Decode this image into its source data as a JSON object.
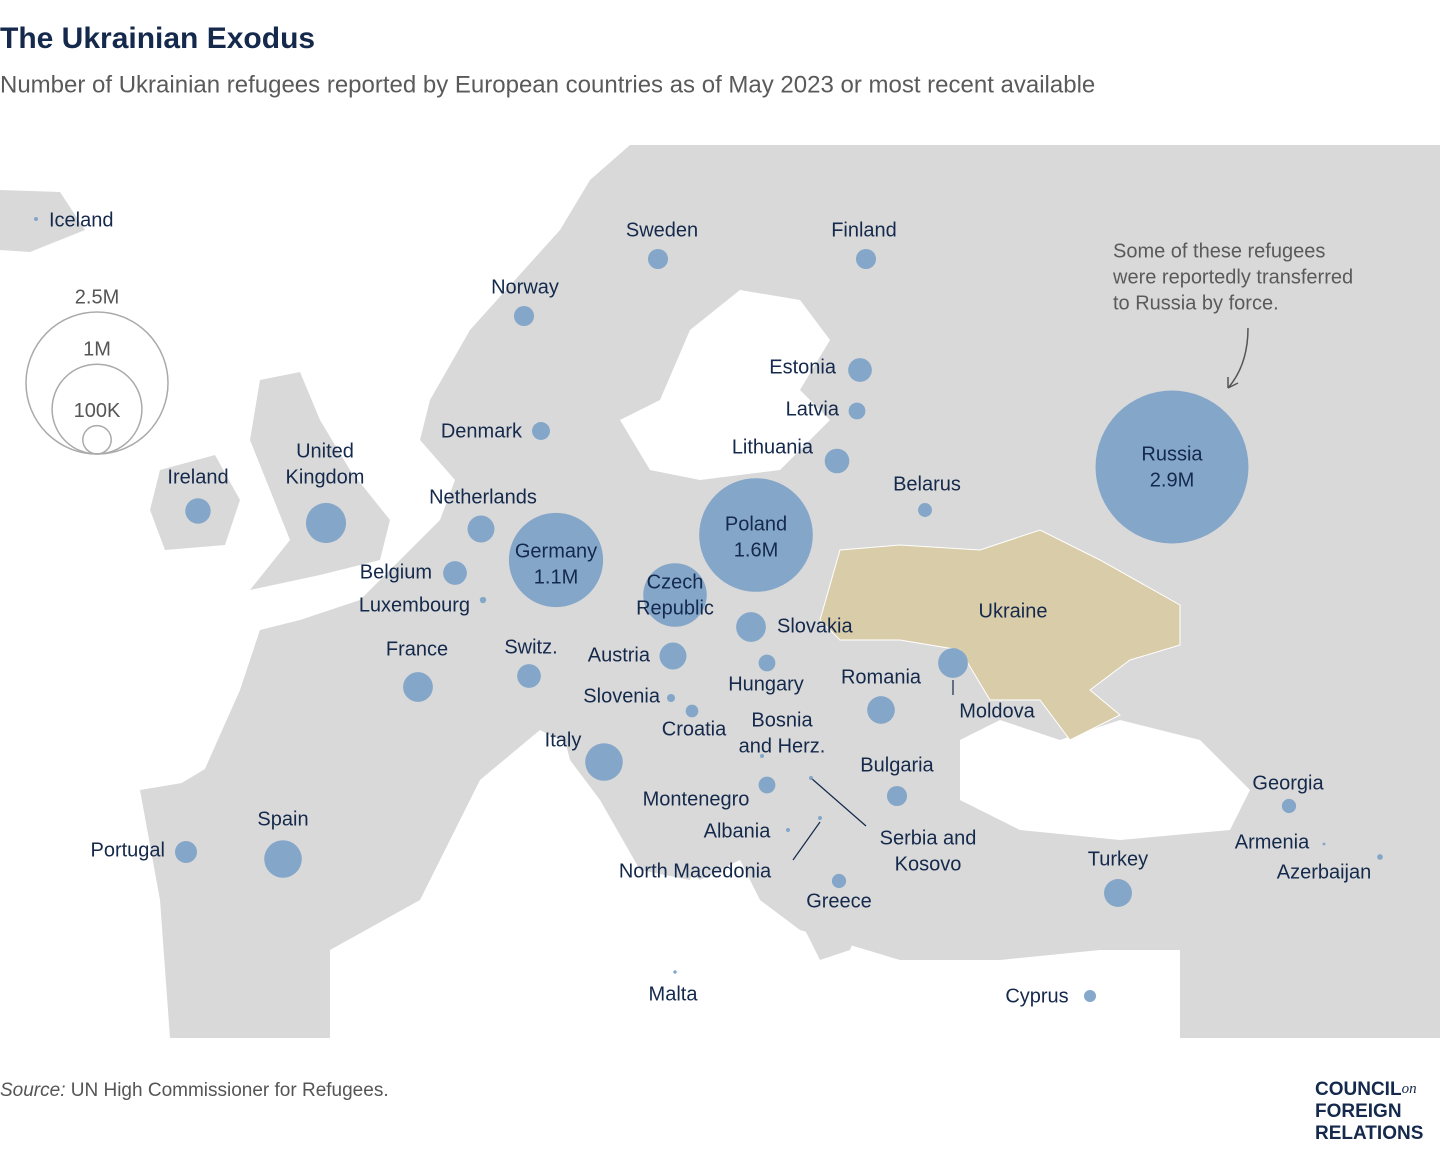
{
  "title": "The Ukrainian Exodus",
  "subtitle": "Number of Ukrainian refugees reported by European countries as of May 2023 or most recent available",
  "legend": {
    "sizes": [
      {
        "value": 2500000,
        "label": "2.5M"
      },
      {
        "value": 1000000,
        "label": "1M"
      },
      {
        "value": 100000,
        "label": "100K"
      }
    ]
  },
  "annotation": [
    "Some of these refugees",
    "were reportedly transferred",
    "to Russia by force."
  ],
  "ukraine_label": "Ukraine",
  "countries": [
    {
      "name": "Iceland",
      "value": 2000
    },
    {
      "name": "Sweden",
      "value": 50000
    },
    {
      "name": "Finland",
      "value": 50000
    },
    {
      "name": "Norway",
      "value": 50000
    },
    {
      "name": "Estonia",
      "value": 70000
    },
    {
      "name": "Latvia",
      "value": 35000
    },
    {
      "name": "Denmark",
      "value": 40000
    },
    {
      "name": "Lithuania",
      "value": 75000
    },
    {
      "name": "Belarus",
      "value": 24000
    },
    {
      "name": "Ireland",
      "value": 80000
    },
    {
      "name": [
        "United",
        "Kingdom"
      ],
      "value": 200000
    },
    {
      "name": "Netherlands",
      "value": 90000
    },
    {
      "name": "Germany",
      "value": 1100000,
      "value_label": "1.1M"
    },
    {
      "name": "Poland",
      "value": 1600000,
      "value_label": "1.6M"
    },
    {
      "name": "Russia",
      "value": 2900000,
      "value_label": "2.9M"
    },
    {
      "name": "Belgium",
      "value": 70000
    },
    {
      "name": "Luxembourg",
      "value": 5000
    },
    {
      "name": [
        "Czech",
        "Republic"
      ],
      "value": 500000
    },
    {
      "name": "Slovakia",
      "value": 110000
    },
    {
      "name": "France",
      "value": 110000
    },
    {
      "name": "Switz.",
      "value": 70000
    },
    {
      "name": "Austria",
      "value": 90000
    },
    {
      "name": "Hungary",
      "value": 35000
    },
    {
      "name": "Slovenia",
      "value": 8000
    },
    {
      "name": "Croatia",
      "value": 20000
    },
    {
      "name": "Romania",
      "value": 95000
    },
    {
      "name": "Moldova",
      "value": 110000
    },
    {
      "name": "Italy",
      "value": 175000
    },
    {
      "name": [
        "Bosnia",
        "and Herz."
      ],
      "value": 2000
    },
    {
      "name": "Montenegro",
      "value": 35000
    },
    {
      "name": [
        "Serbia and",
        "Kosovo"
      ],
      "value": 2000
    },
    {
      "name": "Bulgaria",
      "value": 50000
    },
    {
      "name": "Albania",
      "value": 2000
    },
    {
      "name": "North Macedonia",
      "value": 2000
    },
    {
      "name": "Greece",
      "value": 25000
    },
    {
      "name": "Turkey",
      "value": 97000
    },
    {
      "name": "Georgia",
      "value": 25000
    },
    {
      "name": "Armenia",
      "value": 1000
    },
    {
      "name": "Azerbaijan",
      "value": 4000
    },
    {
      "name": "Cyprus",
      "value": 18000
    },
    {
      "name": "Spain",
      "value": 175000
    },
    {
      "name": "Portugal",
      "value": 60000
    },
    {
      "name": "Malta",
      "value": 1500
    }
  ],
  "source_label": "Source:",
  "source": "UN High Commissioner for Refugees.",
  "logo": {
    "line1": "COUNCIL",
    "on": "on",
    "line2": "FOREIGN",
    "line3": "RELATIONS"
  }
}
